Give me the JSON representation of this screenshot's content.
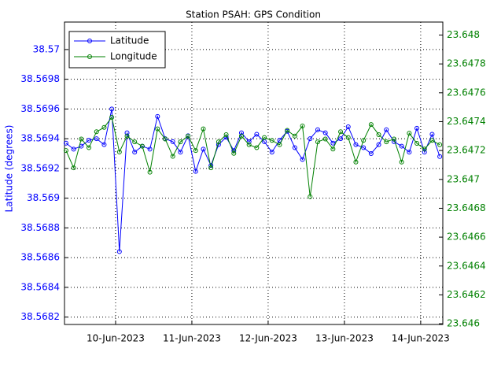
{
  "chart_data": {
    "type": "line",
    "title": "Station PSAH: GPS Condition",
    "y_label": "Latitude (degrees)",
    "x": [
      9.35,
      9.45,
      9.55,
      9.65,
      9.75,
      9.85,
      9.95,
      10.05,
      10.15,
      10.25,
      10.35,
      10.45,
      10.55,
      10.65,
      10.75,
      10.85,
      10.95,
      11.05,
      11.15,
      11.25,
      11.35,
      11.45,
      11.55,
      11.65,
      11.75,
      11.85,
      11.95,
      12.05,
      12.15,
      12.25,
      12.35,
      12.45,
      12.55,
      12.65,
      12.75,
      12.85,
      12.95,
      13.05,
      13.15,
      13.25,
      13.35,
      13.45,
      13.55,
      13.65,
      13.75,
      13.85,
      13.95,
      14.05,
      14.15,
      14.25
    ],
    "series": [
      {
        "name": "Latitude",
        "color": "#0000ff",
        "axis": "y",
        "values": [
          38.56937,
          38.56933,
          38.56935,
          38.56939,
          38.5694,
          38.56936,
          38.5696,
          38.56864,
          38.56944,
          38.56931,
          38.56935,
          38.56933,
          38.56955,
          38.5694,
          38.56938,
          38.56931,
          38.56942,
          38.56918,
          38.56933,
          38.56922,
          38.56936,
          38.56941,
          38.56932,
          38.56944,
          38.56938,
          38.56943,
          38.56938,
          38.56931,
          38.56939,
          38.56945,
          38.56934,
          38.56926,
          38.5694,
          38.56946,
          38.56944,
          38.56937,
          38.5694,
          38.56948,
          38.56936,
          38.56934,
          38.5693,
          38.56936,
          38.56946,
          38.56938,
          38.56935,
          38.56931,
          38.56947,
          38.56931,
          38.56943,
          38.56928
        ]
      },
      {
        "name": "Longitude",
        "color": "#008000",
        "axis": "y2",
        "values": [
          23.6472,
          23.64708,
          23.64728,
          23.64722,
          23.64733,
          23.64736,
          23.64743,
          23.64719,
          23.6473,
          23.64726,
          23.64723,
          23.64705,
          23.64735,
          23.64728,
          23.64716,
          23.64726,
          23.6473,
          23.6472,
          23.64735,
          23.64708,
          23.64726,
          23.64731,
          23.64718,
          23.6473,
          23.64724,
          23.64722,
          23.64729,
          23.64727,
          23.64724,
          23.64734,
          23.6473,
          23.64737,
          23.64688,
          23.64726,
          23.64728,
          23.64721,
          23.64733,
          23.64729,
          23.64712,
          23.64727,
          23.64738,
          23.64731,
          23.64726,
          23.64728,
          23.64712,
          23.64732,
          23.64725,
          23.64721,
          23.64727,
          23.64724
        ]
      }
    ],
    "xlim": [
      9.33,
      14.29
    ],
    "xticks": [
      {
        "value": 10,
        "label": "10-Jun-2023"
      },
      {
        "value": 11,
        "label": "11-Jun-2023"
      },
      {
        "value": 12,
        "label": "12-Jun-2023"
      },
      {
        "value": 13,
        "label": "13-Jun-2023"
      },
      {
        "value": 14,
        "label": "14-Jun-2023"
      }
    ],
    "ylim": [
      38.56815,
      38.570185
    ],
    "yticks": [
      38.5682,
      38.5684,
      38.5686,
      38.5688,
      38.569,
      38.5692,
      38.5694,
      38.5696,
      38.5698,
      38.57
    ],
    "y2lim": [
      23.645995,
      23.64809
    ],
    "y2ticks": [
      23.646,
      23.6462,
      23.6464,
      23.6466,
      23.6468,
      23.647,
      23.6472,
      23.6474,
      23.6476,
      23.6478,
      23.648
    ],
    "grid": true,
    "legend": "upper-left"
  }
}
